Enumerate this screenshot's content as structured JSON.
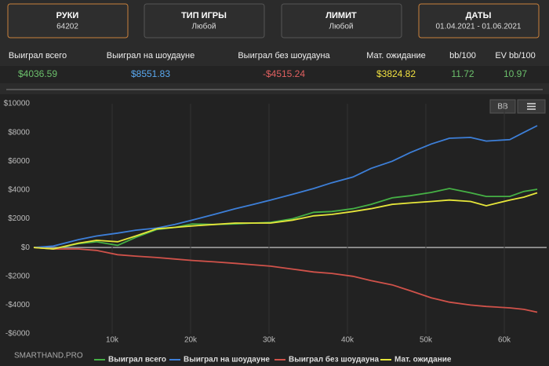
{
  "header": {
    "boxes": [
      {
        "title": "РУКИ",
        "value": "64202"
      },
      {
        "title": "ТИП ИГРЫ",
        "value": "Любой"
      },
      {
        "title": "ЛИМИТ",
        "value": "Любой"
      },
      {
        "title": "ДАТЫ",
        "value": "01.04.2021 - 01.06.2021"
      }
    ]
  },
  "stats": {
    "headers": [
      "Выиграл всего",
      "Выиграл на шоудауне",
      "Выиграл без шоудауна",
      "Мат. ожидание",
      "bb/100",
      "EV bb/100"
    ],
    "values": [
      "$4036.59",
      "$8551.83",
      "-$4515.24",
      "$3824.82",
      "11.72",
      "10.97"
    ]
  },
  "buttons": [
    "BB"
  ],
  "watermark": "SMARTHAND.PRO",
  "chart_data": {
    "type": "line",
    "x": [
      0,
      2500,
      5700,
      8000,
      10700,
      13000,
      15700,
      18000,
      20200,
      23000,
      25700,
      28000,
      30200,
      33000,
      35700,
      38000,
      40700,
      43000,
      45700,
      48000,
      50700,
      53000,
      55700,
      57700,
      60700,
      62500,
      64200
    ],
    "series": [
      {
        "name": "Выиграл всего",
        "color": "#45b045",
        "values": [
          0,
          -100,
          270,
          400,
          150,
          700,
          1250,
          1400,
          1640,
          1600,
          1640,
          1700,
          1750,
          2000,
          2450,
          2500,
          2700,
          3000,
          3450,
          3600,
          3830,
          4100,
          3800,
          3550,
          3550,
          3900,
          4050
        ]
      },
      {
        "name": "Выиграл на шоудауне",
        "color": "#3d7fd8",
        "values": [
          0,
          100,
          550,
          800,
          1000,
          1200,
          1350,
          1600,
          1900,
          2300,
          2700,
          3000,
          3300,
          3700,
          4100,
          4500,
          4900,
          5500,
          6000,
          6600,
          7200,
          7600,
          7650,
          7400,
          7500,
          8000,
          8470
        ]
      },
      {
        "name": "Выиграл без шоудауна",
        "color": "#d0524a",
        "values": [
          0,
          -100,
          -100,
          -200,
          -500,
          -600,
          -700,
          -800,
          -900,
          -1000,
          -1100,
          -1200,
          -1300,
          -1500,
          -1700,
          -1800,
          -2000,
          -2300,
          -2600,
          -3000,
          -3500,
          -3800,
          -4000,
          -4100,
          -4200,
          -4300,
          -4500
        ]
      },
      {
        "name": "Мат. ожидание",
        "color": "#e6e63a",
        "values": [
          0,
          -100,
          300,
          500,
          400,
          800,
          1300,
          1400,
          1500,
          1600,
          1700,
          1700,
          1700,
          1900,
          2200,
          2300,
          2500,
          2700,
          3000,
          3100,
          3200,
          3300,
          3200,
          2900,
          3300,
          3500,
          3800
        ]
      }
    ],
    "xlim": [
      0,
      65400
    ],
    "xticks": [
      {
        "value": 10000,
        "label": "10k"
      },
      {
        "value": 20000,
        "label": "20k"
      },
      {
        "value": 30000,
        "label": "30k"
      },
      {
        "value": 40000,
        "label": "40k"
      },
      {
        "value": 50000,
        "label": "50k"
      },
      {
        "value": 60000,
        "label": "60k"
      }
    ],
    "ylim": [
      -6000,
      10000
    ],
    "yticks": [
      {
        "value": -6000,
        "label": "-$6000"
      },
      {
        "value": -4000,
        "label": "-$4000"
      },
      {
        "value": -2000,
        "label": "-$2000"
      },
      {
        "value": 0,
        "label": "$0"
      },
      {
        "value": 2000,
        "label": "$2000"
      },
      {
        "value": 4000,
        "label": "$4000"
      },
      {
        "value": 6000,
        "label": "$6000"
      },
      {
        "value": 8000,
        "label": "$8000"
      },
      {
        "value": 10000,
        "label": "$10000"
      }
    ],
    "grid": true
  }
}
